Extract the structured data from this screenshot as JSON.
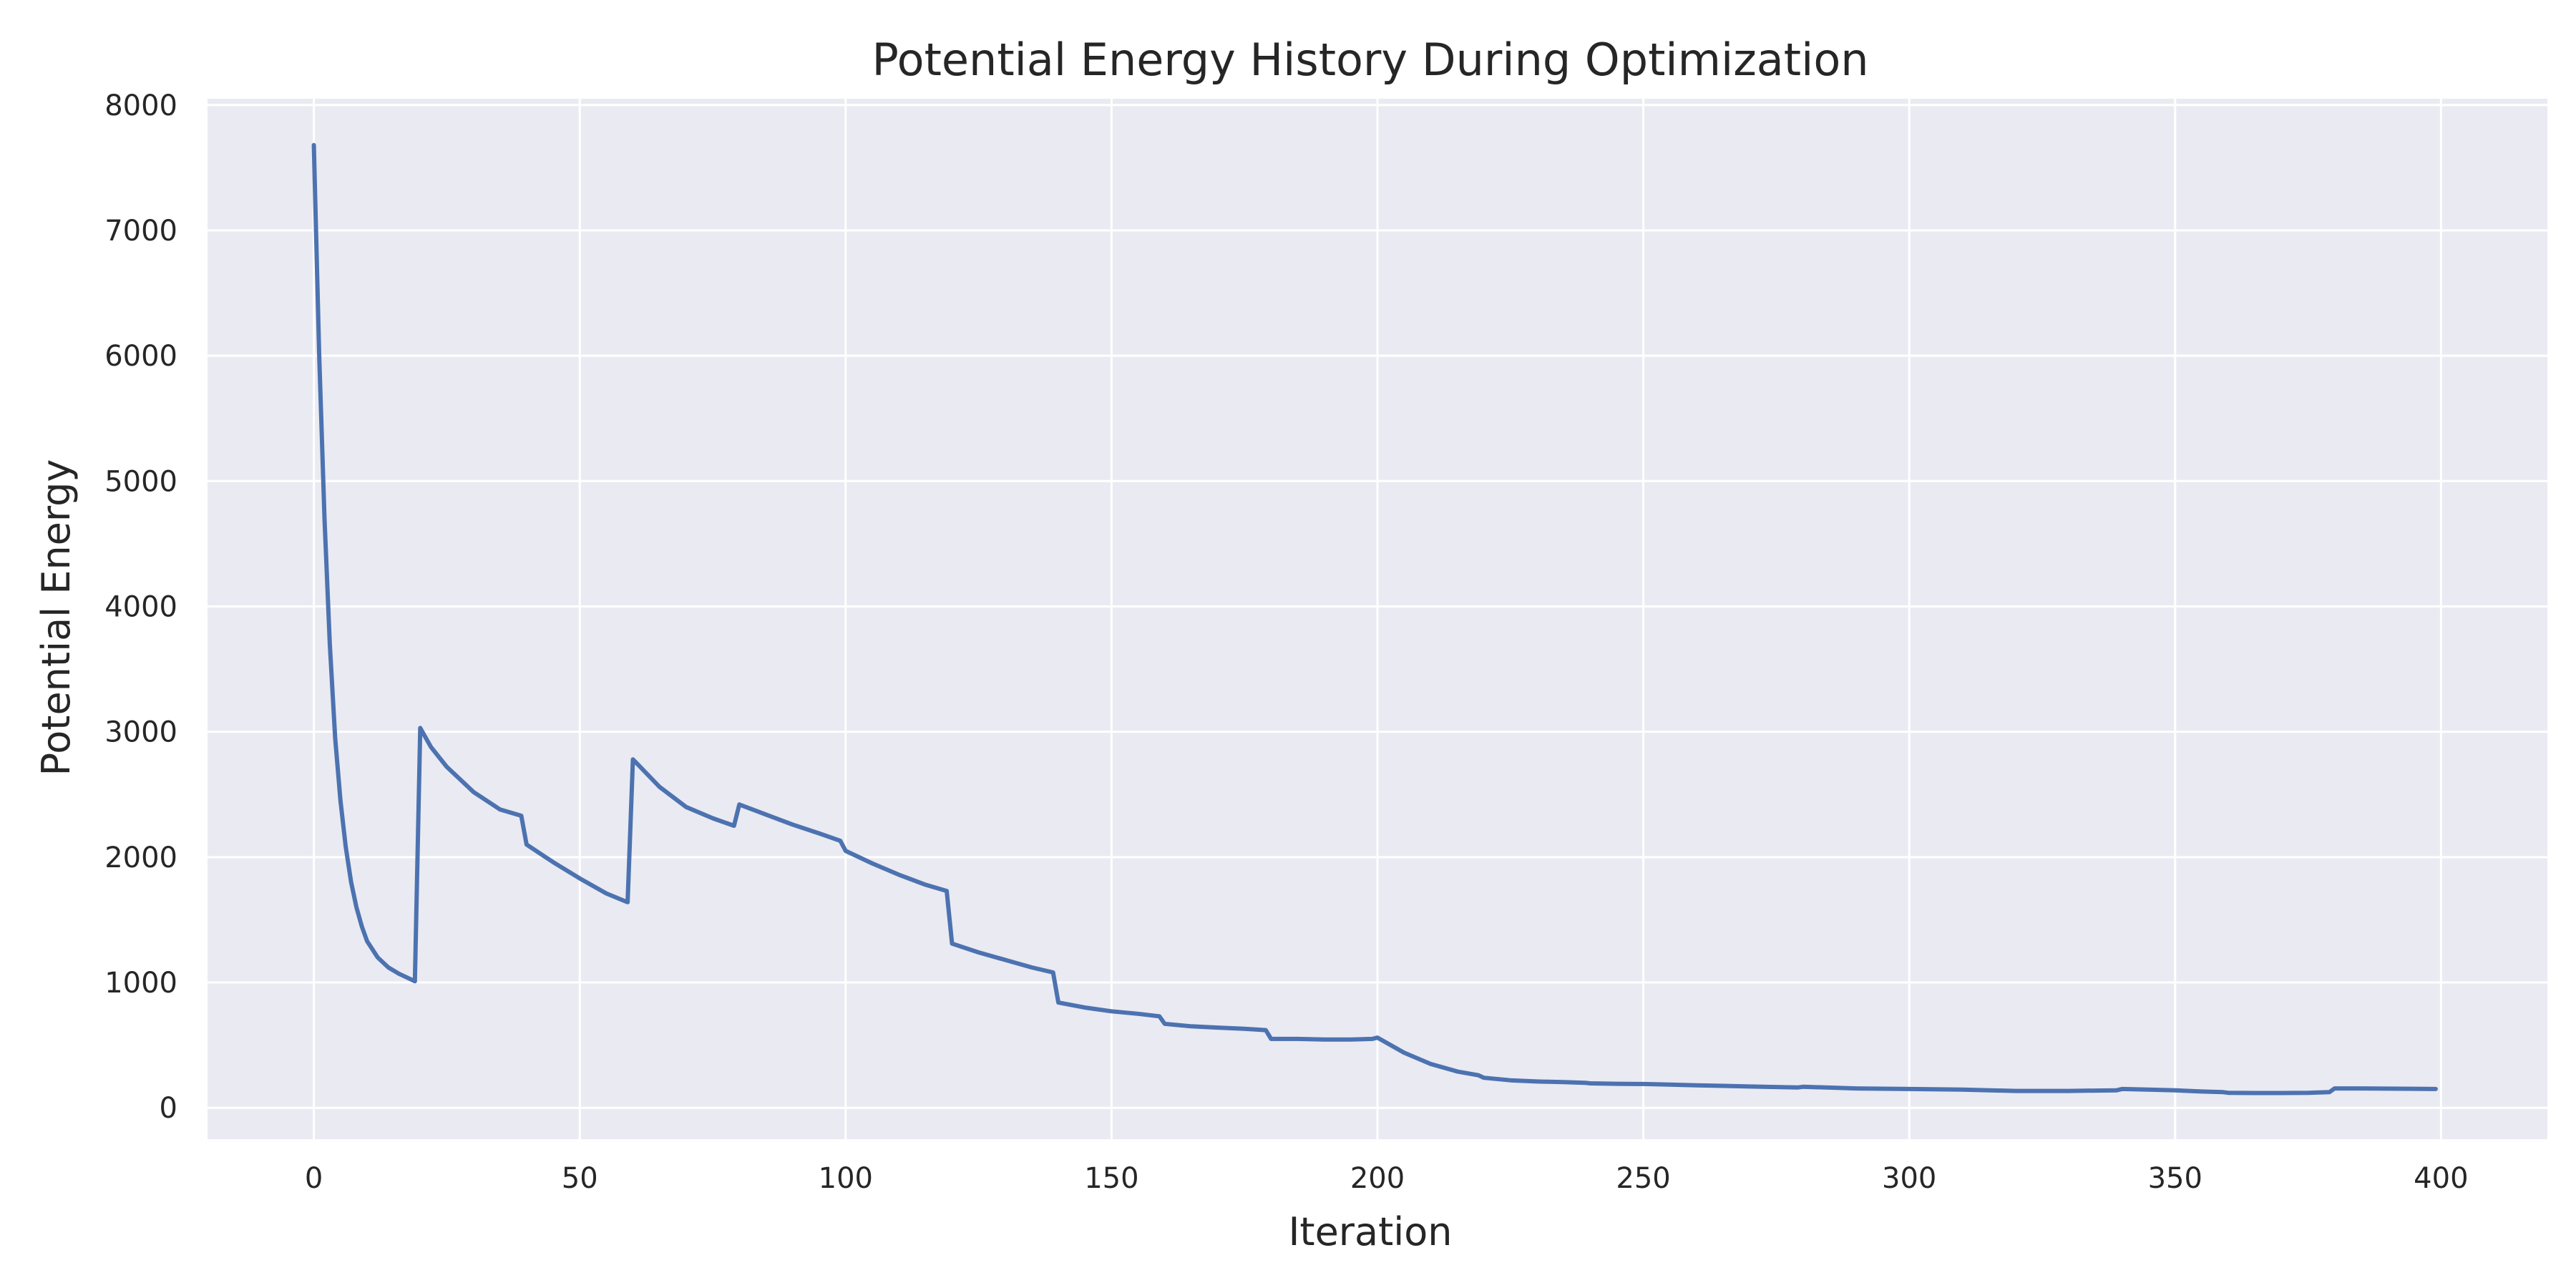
{
  "chart_data": {
    "type": "line",
    "title": "Potential Energy History During Optimization",
    "xlabel": "Iteration",
    "ylabel": "Potential Energy",
    "xlim": [
      -20,
      420
    ],
    "ylim": [
      -250,
      8050
    ],
    "xticks": [
      0,
      50,
      100,
      150,
      200,
      250,
      300,
      350,
      400
    ],
    "yticks": [
      0,
      1000,
      2000,
      3000,
      4000,
      5000,
      6000,
      7000,
      8000
    ],
    "grid": true,
    "colors": {
      "background": "#eaeaf2",
      "grid": "#ffffff",
      "line": "#4c72b0",
      "text": "#262626"
    },
    "series": [
      {
        "x": [
          0,
          1,
          2,
          3,
          4,
          5,
          6,
          7,
          8,
          9,
          10,
          12,
          14,
          16,
          18,
          19,
          20,
          22,
          25,
          30,
          35,
          39,
          40,
          45,
          50,
          55,
          59,
          60,
          65,
          70,
          75,
          79,
          80,
          85,
          90,
          95,
          99,
          100,
          105,
          110,
          115,
          119,
          120,
          125,
          130,
          135,
          139,
          140,
          145,
          150,
          155,
          159,
          160,
          165,
          170,
          175,
          179,
          180,
          185,
          190,
          195,
          199,
          200,
          205,
          210,
          215,
          219,
          220,
          225,
          230,
          235,
          239,
          240,
          245,
          250,
          255,
          260,
          270,
          279,
          280,
          290,
          300,
          310,
          320,
          330,
          339,
          340,
          345,
          350,
          355,
          359,
          360,
          365,
          370,
          375,
          379,
          380,
          385,
          390,
          395,
          399
        ],
        "y": [
          7680,
          6000,
          4700,
          3700,
          2950,
          2450,
          2080,
          1800,
          1600,
          1450,
          1330,
          1200,
          1120,
          1070,
          1030,
          1010,
          3030,
          2880,
          2720,
          2520,
          2380,
          2330,
          2100,
          1960,
          1830,
          1710,
          1640,
          2780,
          2560,
          2400,
          2310,
          2250,
          2420,
          2340,
          2260,
          2190,
          2130,
          2050,
          1950,
          1860,
          1780,
          1730,
          1310,
          1240,
          1180,
          1120,
          1080,
          840,
          800,
          770,
          750,
          730,
          670,
          650,
          640,
          630,
          620,
          550,
          550,
          545,
          545,
          550,
          560,
          440,
          350,
          290,
          260,
          240,
          220,
          210,
          205,
          200,
          195,
          192,
          190,
          185,
          180,
          170,
          162,
          168,
          155,
          150,
          145,
          135,
          135,
          140,
          150,
          145,
          140,
          130,
          125,
          120,
          118,
          118,
          120,
          125,
          155,
          155,
          153,
          152,
          150
        ]
      }
    ]
  }
}
